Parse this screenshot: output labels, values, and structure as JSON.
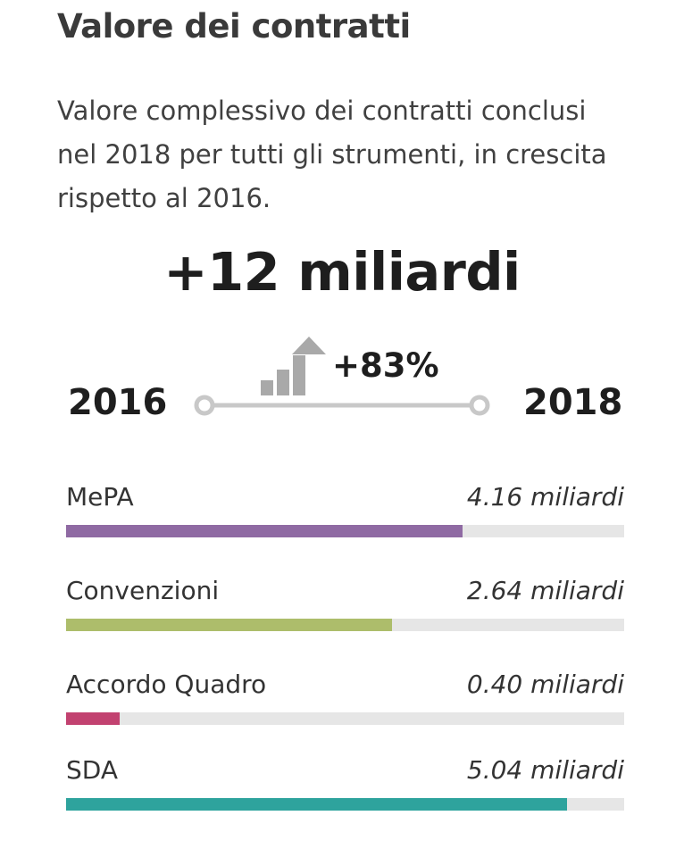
{
  "header": {
    "title": "Valore dei contratti",
    "description": "Valore complessivo dei contratti conclusi nel 2018 per tutti gli strumenti, in crescita rispetto al 2016."
  },
  "summary": {
    "headline": "+12 miliardi",
    "growth": "+83%",
    "start_year": "2016",
    "end_year": "2018",
    "icon": "growth-chart-icon",
    "colors": {
      "timeline": "#c8c8c8",
      "icon": "#a9a9a9"
    }
  },
  "instruments": [
    {
      "label": "MePA",
      "value": "4.16 miliardi",
      "fill_fraction": 0.71,
      "color": "#8f6aa3"
    },
    {
      "label": "Convenzioni",
      "value": "2.64 miliardi",
      "fill_fraction": 0.584,
      "color": "#adbd6b"
    },
    {
      "label": "Accordo Quadro",
      "value": "0.40 miliardi",
      "fill_fraction": 0.096,
      "color": "#c24270"
    },
    {
      "label": "SDA",
      "value": "5.04 miliardi",
      "fill_fraction": 0.898,
      "color": "#2ea39d"
    }
  ],
  "track_color": "#e6e6e6"
}
